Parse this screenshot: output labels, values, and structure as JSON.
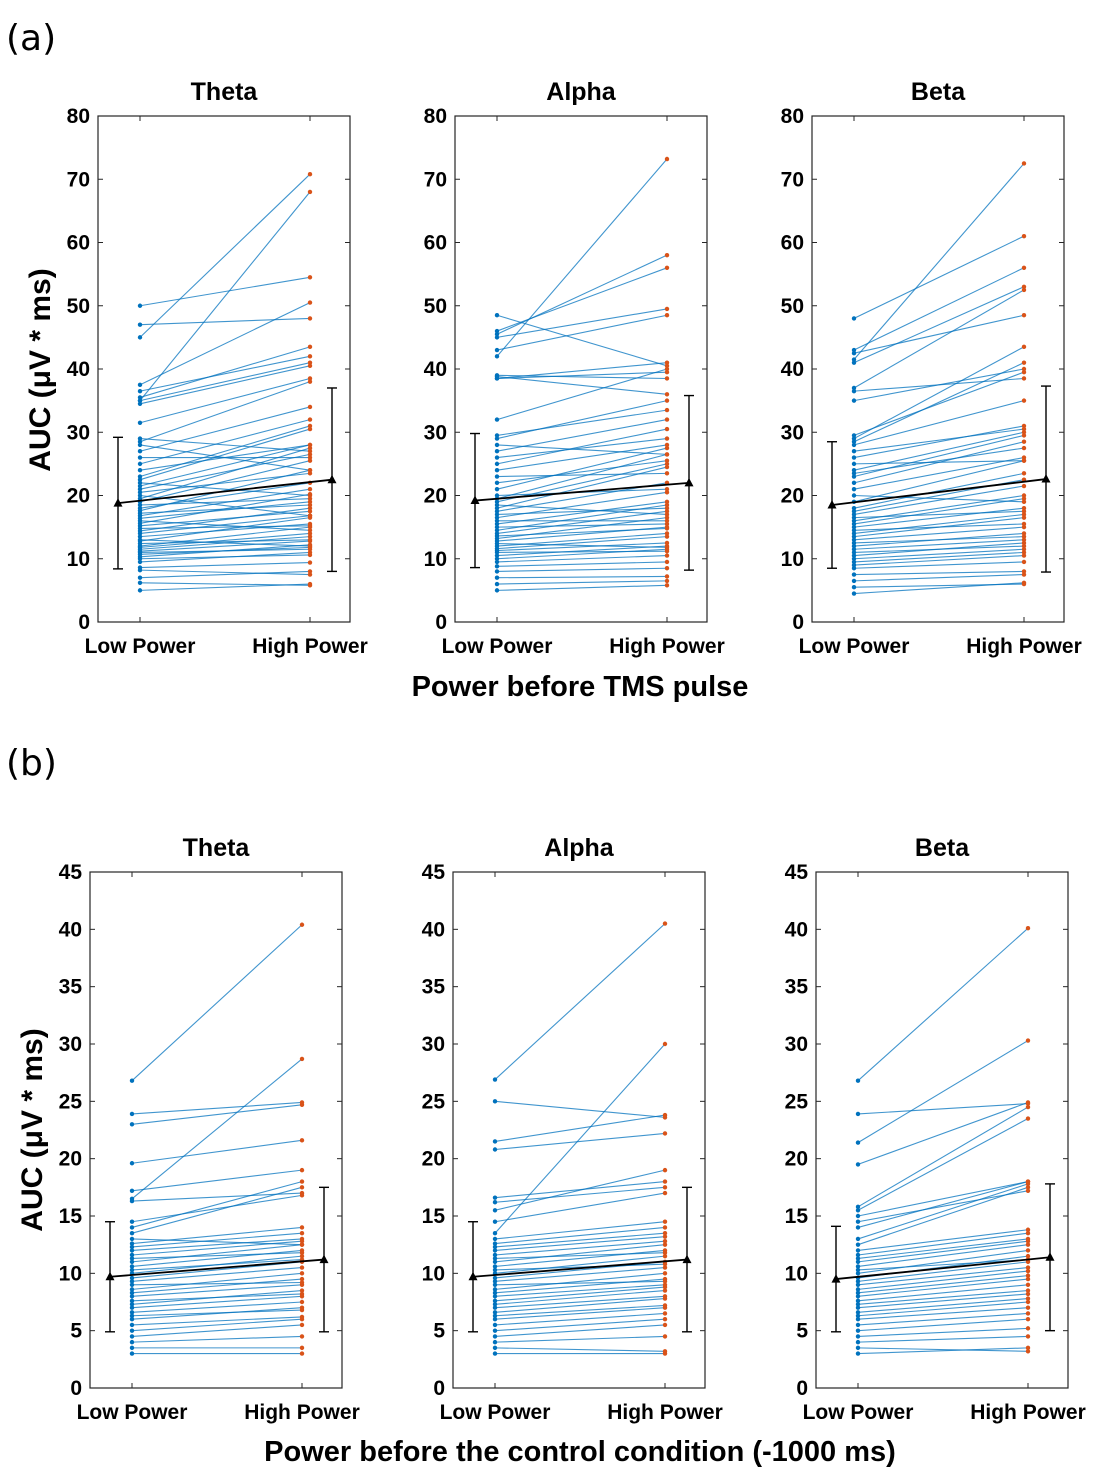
{
  "panels": [
    {
      "letter": "(a)",
      "ylabel": "AUC (μV * ms)",
      "xlabel": "Power before TMS pulse"
    },
    {
      "letter": "(b)",
      "ylabel": "AUC (μV * ms)",
      "xlabel": "Power before the control condition (-1000 ms)"
    }
  ],
  "colors": {
    "lines": "#0072BD",
    "low_points": "#0072BD",
    "high_points": "#D95319",
    "mean": "#000000",
    "axes": "#262626"
  },
  "chart_data": [
    {
      "type": "line",
      "title": "Theta",
      "categories": [
        "Low Power",
        "High Power"
      ],
      "ylim": [
        0,
        80
      ],
      "yticks": [
        0,
        10,
        20,
        30,
        40,
        50,
        60,
        70,
        80
      ],
      "grid": false,
      "pairs": [
        [
          5.0,
          6.0
        ],
        [
          6.2,
          5.8
        ],
        [
          7.0,
          8.0
        ],
        [
          8.2,
          7.5
        ],
        [
          8.6,
          9.4
        ],
        [
          9.5,
          11.0
        ],
        [
          10.0,
          10.6
        ],
        [
          10.3,
          12.2
        ],
        [
          10.7,
          11.8
        ],
        [
          11.0,
          11.5
        ],
        [
          11.2,
          12.8
        ],
        [
          11.5,
          13.5
        ],
        [
          11.8,
          14.0
        ],
        [
          12.0,
          15.0
        ],
        [
          12.4,
          13.0
        ],
        [
          12.8,
          16.5
        ],
        [
          13.0,
          12.0
        ],
        [
          13.5,
          15.5
        ],
        [
          14.0,
          16.8
        ],
        [
          14.4,
          18.0
        ],
        [
          14.8,
          15.2
        ],
        [
          15.2,
          17.5
        ],
        [
          15.6,
          20.2
        ],
        [
          16.0,
          14.5
        ],
        [
          16.4,
          19.0
        ],
        [
          16.8,
          21.0
        ],
        [
          17.2,
          18.5
        ],
        [
          17.6,
          24.0
        ],
        [
          18.0,
          22.0
        ],
        [
          18.5,
          19.5
        ],
        [
          19.0,
          25.5
        ],
        [
          19.5,
          27.5
        ],
        [
          20.0,
          16.8
        ],
        [
          20.5,
          23.5
        ],
        [
          21.0,
          26.5
        ],
        [
          21.5,
          28.0
        ],
        [
          22.0,
          20.0
        ],
        [
          22.5,
          30.5
        ],
        [
          23.0,
          31.0
        ],
        [
          24.0,
          28.0
        ],
        [
          25.0,
          32.0
        ],
        [
          26.0,
          26.0
        ],
        [
          27.0,
          34.0
        ],
        [
          28.0,
          24.0
        ],
        [
          28.5,
          38.0
        ],
        [
          29.0,
          27.0
        ],
        [
          31.5,
          38.5
        ],
        [
          34.5,
          40.5
        ],
        [
          35.0,
          41.0
        ],
        [
          35.5,
          43.5
        ],
        [
          36.5,
          42.0
        ],
        [
          37.5,
          50.5
        ],
        [
          35.0,
          68.0
        ],
        [
          45.0,
          70.8
        ],
        [
          47.0,
          48.0
        ],
        [
          50.0,
          54.5
        ]
      ],
      "mean": [
        18.8,
        22.5
      ],
      "sd": [
        10.4,
        14.5
      ]
    },
    {
      "type": "line",
      "title": "Alpha",
      "categories": [
        "Low Power",
        "High Power"
      ],
      "ylim": [
        0,
        80
      ],
      "yticks": [
        0,
        10,
        20,
        30,
        40,
        50,
        60,
        70,
        80
      ],
      "grid": false,
      "pairs": [
        [
          5.0,
          5.8
        ],
        [
          6.0,
          6.5
        ],
        [
          7.0,
          7.2
        ],
        [
          8.0,
          8.5
        ],
        [
          8.8,
          9.5
        ],
        [
          9.5,
          10.5
        ],
        [
          10.0,
          11.5
        ],
        [
          10.5,
          12.0
        ],
        [
          11.0,
          11.2
        ],
        [
          11.3,
          12.5
        ],
        [
          11.6,
          13.5
        ],
        [
          12.0,
          14.0
        ],
        [
          12.4,
          11.8
        ],
        [
          12.8,
          15.0
        ],
        [
          13.2,
          16.5
        ],
        [
          13.6,
          14.8
        ],
        [
          14.0,
          17.5
        ],
        [
          14.5,
          18.5
        ],
        [
          15.0,
          15.5
        ],
        [
          15.5,
          19.0
        ],
        [
          16.0,
          16.0
        ],
        [
          16.5,
          20.5
        ],
        [
          17.0,
          18.0
        ],
        [
          17.5,
          22.0
        ],
        [
          18.0,
          24.5
        ],
        [
          18.5,
          17.0
        ],
        [
          19.0,
          25.0
        ],
        [
          19.5,
          26.5
        ],
        [
          20.0,
          21.0
        ],
        [
          21.0,
          27.5
        ],
        [
          22.0,
          25.5
        ],
        [
          23.0,
          23.5
        ],
        [
          24.0,
          28.0
        ],
        [
          25.0,
          30.5
        ],
        [
          26.0,
          29.0
        ],
        [
          27.0,
          32.0
        ],
        [
          28.0,
          26.5
        ],
        [
          29.0,
          35.0
        ],
        [
          29.5,
          33.5
        ],
        [
          32.0,
          40.0
        ],
        [
          38.5,
          39.5
        ],
        [
          38.8,
          36.0
        ],
        [
          39.0,
          38.5
        ],
        [
          38.5,
          41.0
        ],
        [
          43.0,
          48.5
        ],
        [
          45.0,
          49.5
        ],
        [
          45.5,
          58.0
        ],
        [
          46.0,
          56.0
        ],
        [
          42.0,
          73.2
        ],
        [
          48.5,
          40.5
        ]
      ],
      "mean": [
        19.2,
        22.0
      ],
      "sd": [
        10.6,
        13.8
      ]
    },
    {
      "type": "line",
      "title": "Beta",
      "categories": [
        "Low Power",
        "High Power"
      ],
      "ylim": [
        0,
        80
      ],
      "yticks": [
        0,
        10,
        20,
        30,
        40,
        50,
        60,
        70,
        80
      ],
      "grid": false,
      "pairs": [
        [
          4.5,
          6.2
        ],
        [
          5.5,
          6.0
        ],
        [
          6.5,
          7.5
        ],
        [
          7.5,
          8.0
        ],
        [
          8.5,
          9.5
        ],
        [
          9.0,
          10.5
        ],
        [
          9.5,
          11.0
        ],
        [
          10.0,
          11.5
        ],
        [
          10.5,
          12.5
        ],
        [
          11.0,
          12.0
        ],
        [
          11.5,
          13.0
        ],
        [
          12.0,
          14.0
        ],
        [
          12.5,
          13.5
        ],
        [
          13.0,
          15.0
        ],
        [
          13.5,
          16.5
        ],
        [
          14.0,
          17.0
        ],
        [
          14.5,
          15.5
        ],
        [
          15.0,
          18.0
        ],
        [
          15.5,
          19.5
        ],
        [
          16.0,
          20.0
        ],
        [
          16.5,
          17.5
        ],
        [
          17.0,
          21.5
        ],
        [
          17.5,
          22.5
        ],
        [
          18.0,
          23.5
        ],
        [
          19.0,
          25.5
        ],
        [
          20.0,
          19.0
        ],
        [
          21.0,
          26.0
        ],
        [
          22.0,
          28.5
        ],
        [
          23.0,
          29.5
        ],
        [
          23.5,
          27.5
        ],
        [
          24.0,
          30.0
        ],
        [
          25.0,
          25.5
        ],
        [
          26.0,
          31.0
        ],
        [
          27.0,
          30.5
        ],
        [
          28.0,
          35.0
        ],
        [
          28.5,
          41.0
        ],
        [
          29.0,
          43.5
        ],
        [
          29.5,
          39.5
        ],
        [
          35.0,
          40.0
        ],
        [
          36.5,
          38.5
        ],
        [
          37.0,
          52.5
        ],
        [
          41.0,
          53.0
        ],
        [
          42.5,
          48.5
        ],
        [
          43.0,
          56.0
        ],
        [
          48.0,
          61.0
        ],
        [
          41.5,
          72.5
        ]
      ],
      "mean": [
        18.5,
        22.6
      ],
      "sd": [
        10.0,
        14.7
      ]
    },
    {
      "type": "line",
      "title": "Theta",
      "categories": [
        "Low Power",
        "High Power"
      ],
      "ylim": [
        0,
        45
      ],
      "yticks": [
        0,
        5,
        10,
        15,
        20,
        25,
        30,
        35,
        40,
        45
      ],
      "grid": false,
      "pairs": [
        [
          3.0,
          3.0
        ],
        [
          3.5,
          3.5
        ],
        [
          4.0,
          4.5
        ],
        [
          4.5,
          5.5
        ],
        [
          5.0,
          6.0
        ],
        [
          5.5,
          6.2
        ],
        [
          6.0,
          7.0
        ],
        [
          6.3,
          6.8
        ],
        [
          6.6,
          7.5
        ],
        [
          7.0,
          8.0
        ],
        [
          7.3,
          8.5
        ],
        [
          7.6,
          8.2
        ],
        [
          8.0,
          9.0
        ],
        [
          8.3,
          9.5
        ],
        [
          8.6,
          10.0
        ],
        [
          9.0,
          9.2
        ],
        [
          9.3,
          10.5
        ],
        [
          9.6,
          11.0
        ],
        [
          10.0,
          11.5
        ],
        [
          10.3,
          11.2
        ],
        [
          10.6,
          12.0
        ],
        [
          11.0,
          12.5
        ],
        [
          11.3,
          11.8
        ],
        [
          11.6,
          12.8
        ],
        [
          12.0,
          13.0
        ],
        [
          12.3,
          13.5
        ],
        [
          12.6,
          14.0
        ],
        [
          13.0,
          12.5
        ],
        [
          13.5,
          17.5
        ],
        [
          14.0,
          18.0
        ],
        [
          14.5,
          16.8
        ],
        [
          16.3,
          17.0
        ],
        [
          17.2,
          19.0
        ],
        [
          19.6,
          21.6
        ],
        [
          23.0,
          24.7
        ],
        [
          23.9,
          24.9
        ],
        [
          26.8,
          40.4
        ],
        [
          16.5,
          28.7
        ]
      ],
      "mean": [
        9.7,
        11.2
      ],
      "sd": [
        4.8,
        6.3
      ]
    },
    {
      "type": "line",
      "title": "Alpha",
      "categories": [
        "Low Power",
        "High Power"
      ],
      "ylim": [
        0,
        45
      ],
      "yticks": [
        0,
        5,
        10,
        15,
        20,
        25,
        30,
        35,
        40,
        45
      ],
      "grid": false,
      "pairs": [
        [
          3.0,
          3.0
        ],
        [
          3.5,
          3.2
        ],
        [
          4.0,
          4.5
        ],
        [
          4.5,
          5.5
        ],
        [
          5.0,
          6.0
        ],
        [
          5.5,
          6.5
        ],
        [
          6.0,
          7.0
        ],
        [
          6.3,
          7.2
        ],
        [
          6.6,
          7.8
        ],
        [
          7.0,
          8.0
        ],
        [
          7.3,
          8.5
        ],
        [
          7.6,
          8.8
        ],
        [
          8.0,
          9.0
        ],
        [
          8.3,
          9.5
        ],
        [
          8.6,
          10.0
        ],
        [
          9.0,
          9.3
        ],
        [
          9.3,
          10.5
        ],
        [
          9.6,
          11.0
        ],
        [
          10.0,
          11.5
        ],
        [
          10.3,
          10.8
        ],
        [
          10.6,
          12.0
        ],
        [
          11.0,
          12.5
        ],
        [
          11.3,
          11.8
        ],
        [
          11.6,
          12.8
        ],
        [
          12.0,
          13.2
        ],
        [
          12.3,
          13.5
        ],
        [
          12.6,
          14.0
        ],
        [
          13.0,
          14.5
        ],
        [
          14.5,
          17.0
        ],
        [
          16.2,
          17.5
        ],
        [
          16.6,
          18.0
        ],
        [
          20.8,
          22.2
        ],
        [
          21.5,
          23.8
        ],
        [
          25.0,
          23.6
        ],
        [
          26.9,
          40.5
        ],
        [
          13.5,
          30.0
        ],
        [
          15.5,
          19.0
        ]
      ],
      "mean": [
        9.7,
        11.2
      ],
      "sd": [
        4.8,
        6.3
      ]
    },
    {
      "type": "line",
      "title": "Beta",
      "categories": [
        "Low Power",
        "High Power"
      ],
      "ylim": [
        0,
        45
      ],
      "yticks": [
        0,
        5,
        10,
        15,
        20,
        25,
        30,
        35,
        40,
        45
      ],
      "grid": false,
      "pairs": [
        [
          3.0,
          3.5
        ],
        [
          3.5,
          3.2
        ],
        [
          4.0,
          4.5
        ],
        [
          4.5,
          5.2
        ],
        [
          5.0,
          6.0
        ],
        [
          5.5,
          6.5
        ],
        [
          6.0,
          7.0
        ],
        [
          6.3,
          7.5
        ],
        [
          6.6,
          7.8
        ],
        [
          7.0,
          8.2
        ],
        [
          7.3,
          8.5
        ],
        [
          7.6,
          9.0
        ],
        [
          8.0,
          9.5
        ],
        [
          8.3,
          9.8
        ],
        [
          8.6,
          10.2
        ],
        [
          9.0,
          10.5
        ],
        [
          9.3,
          11.0
        ],
        [
          9.6,
          11.5
        ],
        [
          10.0,
          12.0
        ],
        [
          10.3,
          11.2
        ],
        [
          10.6,
          12.5
        ],
        [
          11.0,
          12.8
        ],
        [
          11.3,
          13.0
        ],
        [
          11.6,
          13.5
        ],
        [
          12.0,
          13.8
        ],
        [
          12.5,
          17.5
        ],
        [
          13.0,
          17.8
        ],
        [
          14.0,
          18.0
        ],
        [
          14.5,
          17.2
        ],
        [
          15.0,
          18.0
        ],
        [
          15.5,
          23.5
        ],
        [
          15.8,
          24.5
        ],
        [
          19.5,
          24.9
        ],
        [
          21.4,
          30.3
        ],
        [
          23.9,
          24.8
        ],
        [
          26.8,
          40.1
        ]
      ],
      "mean": [
        9.5,
        11.4
      ],
      "sd": [
        4.6,
        6.4
      ]
    }
  ]
}
